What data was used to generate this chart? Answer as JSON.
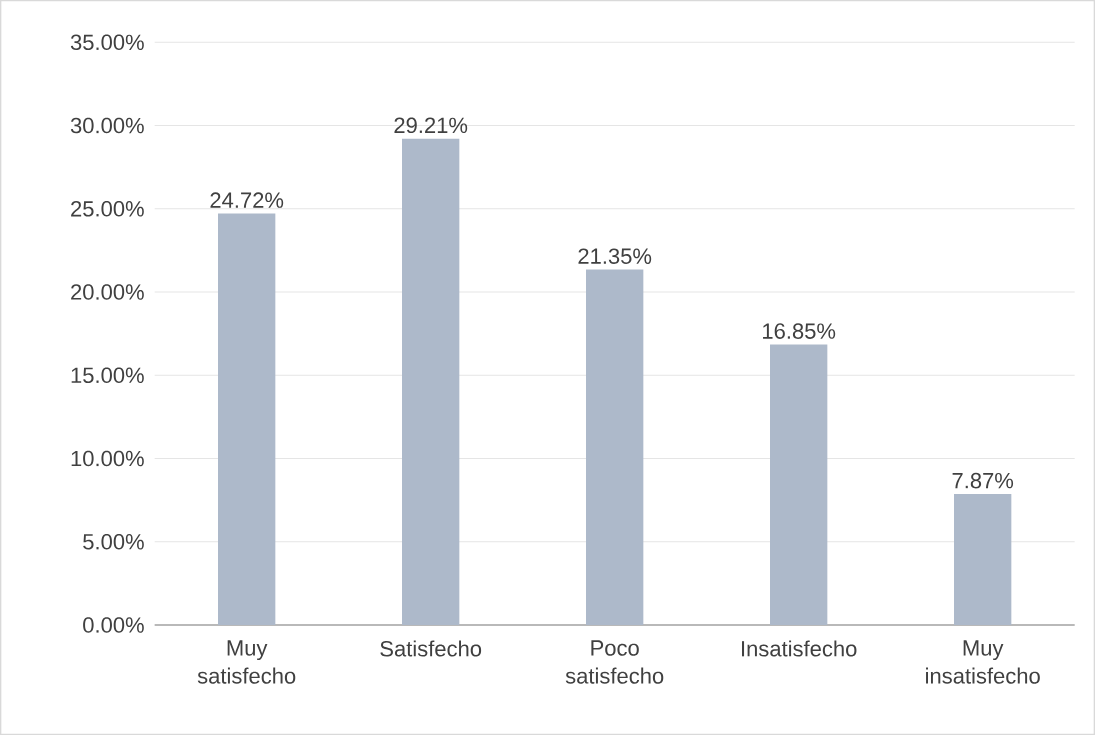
{
  "chart_data": {
    "type": "bar",
    "categories": [
      "Muy satisfecho",
      "Satisfecho",
      "Poco satisfecho",
      "Insatisfecho",
      "Muy insatisfecho"
    ],
    "values": [
      24.72,
      29.21,
      21.35,
      16.85,
      7.87
    ],
    "value_labels": [
      "24.72%",
      "29.21%",
      "21.35%",
      "16.85%",
      "7.87%"
    ],
    "color": "#adb9ca",
    "ylim": [
      0,
      35
    ],
    "yticks": [
      {
        "value": 0,
        "label": "0.00%"
      },
      {
        "value": 5,
        "label": "5.00%"
      },
      {
        "value": 10,
        "label": "10.00%"
      },
      {
        "value": 15,
        "label": "15.00%"
      },
      {
        "value": 20,
        "label": "20.00%"
      },
      {
        "value": 25,
        "label": "25.00%"
      },
      {
        "value": 30,
        "label": "30.00%"
      },
      {
        "value": 35,
        "label": "35.00%"
      }
    ],
    "grid": "y"
  }
}
